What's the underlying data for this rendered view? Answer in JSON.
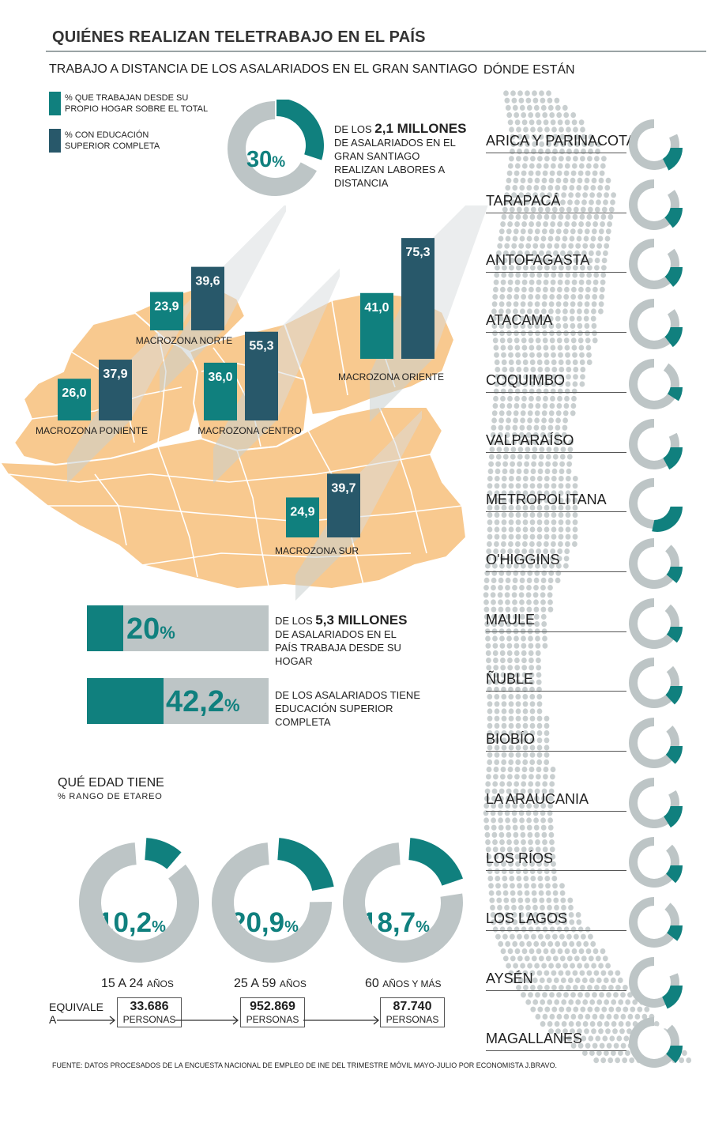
{
  "title": "QUIÉNES REALIZAN TELETRABAJO EN EL PAÍS",
  "subtitle": "TRABAJO A DISTANCIA DE LOS ASALARIADOS EN EL GRAN SANTIAGO",
  "legend": [
    {
      "label": "% QUE TRABAJAN DESDE SU PROPIO HOGAR SOBRE EL TOTAL",
      "color": "#10807e"
    },
    {
      "label": "% CON EDUCACIÓN SUPERIOR COMPLETA",
      "color": "#28586a"
    }
  ],
  "santiago_donut": {
    "value": 30,
    "value_text": "30",
    "text_before": "DE LOS ",
    "text_bold": "2,1 MILLONES",
    "text_after": " DE ASALARIADOS EN EL GRAN SANTIAGO REALIZAN LABORES A DISTANCIA"
  },
  "colors": {
    "teal": "#10807e",
    "navy": "#28586a",
    "gray": "#bdc5c6",
    "map": "#f8c98f",
    "map_line": "#ffffff"
  },
  "chart_data": {
    "type": "bar",
    "categories": [
      "MACROZONA PONIENTE",
      "MACROZONA NORTE",
      "MACROZONA CENTRO",
      "MACROZONA ORIENTE",
      "MACROZONA SUR"
    ],
    "series": [
      {
        "name": "% QUE TRABAJAN DESDE SU PROPIO HOGAR SOBRE EL TOTAL",
        "values": [
          26.0,
          23.9,
          36.0,
          41.0,
          24.9
        ],
        "labels": [
          "26,0",
          "23,9",
          "36,0",
          "41,0",
          "24,9"
        ]
      },
      {
        "name": "% CON EDUCACIÓN SUPERIOR COMPLETA",
        "values": [
          37.9,
          39.6,
          55.3,
          75.3,
          39.7
        ],
        "labels": [
          "37,9",
          "39,6",
          "55,3",
          "75,3",
          "39,7"
        ]
      }
    ]
  },
  "national": [
    {
      "value": 20,
      "value_text": "20",
      "text_before": "DE LOS ",
      "text_bold": "5,3 MILLONES",
      "text_after": " DE ASALARIADOS EN EL PAÍS TRABAJA DESDE SU HOGAR"
    },
    {
      "value": 42.2,
      "value_text": "42,2",
      "text_before": "DE LOS ASALARIADOS TIENE EDUCACIÓN SUPERIOR COMPLETA",
      "text_bold": "",
      "text_after": ""
    }
  ],
  "regions": {
    "title": "DÓNDE ESTÁN",
    "items": [
      {
        "name": "ARICA Y PARINACOTA",
        "value": 17.6,
        "text": "17,6"
      },
      {
        "name": "TARAPACÁ",
        "value": 14.5,
        "text": "14,5"
      },
      {
        "name": "ANTOFAGASTA",
        "value": 14.2,
        "text": "14,2"
      },
      {
        "name": "ATACAMA",
        "value": 14.4,
        "text": "14,4"
      },
      {
        "name": "COQUIMBO",
        "value": 9.1,
        "text": "9,1"
      },
      {
        "name": "VALPARAÍSO",
        "value": 17.1,
        "text": "17,1"
      },
      {
        "name": "METROPOLITANA",
        "value": 28.4,
        "text": "28,4"
      },
      {
        "name": "O'HIGGINS",
        "value": 11.2,
        "text": "11,2"
      },
      {
        "name": "MAULE",
        "value": 10.8,
        "text": "10,8"
      },
      {
        "name": "ÑUBLE",
        "value": 13.0,
        "text": "13,0"
      },
      {
        "name": "BIOBÍO",
        "value": 12.5,
        "text": "12,5"
      },
      {
        "name": "LA ARAUCANIA",
        "value": 16.1,
        "text": "16,1"
      },
      {
        "name": "LOS RÍOS",
        "value": 12.2,
        "text": "12,2"
      },
      {
        "name": "LOS LAGOS",
        "value": 10.5,
        "text": "10,5"
      },
      {
        "name": "AYSÉN",
        "value": 18.5,
        "text": "18,5"
      },
      {
        "name": "MAGALLANES",
        "value": 12.1,
        "text": "12,1"
      }
    ]
  },
  "age": {
    "title": "QUÉ EDAD TIENE",
    "subtitle": "% RANGO DE ETAREO",
    "equiv_label": "EQUIVALE A",
    "persons_label": "PERSONAS",
    "groups": [
      {
        "value": 10.2,
        "text": "10,2",
        "range_main": "15 A 24 ",
        "range_small": "AÑOS",
        "count": "33.686"
      },
      {
        "value": 20.9,
        "text": "20,9",
        "range_main": "25 A 59 ",
        "range_small": "AÑOS",
        "count": "952.869"
      },
      {
        "value": 18.7,
        "text": "18,7",
        "range_main": "60 ",
        "range_small": "AÑOS Y MÁS",
        "count": "87.740"
      }
    ]
  },
  "pct_sign": "%",
  "source": "FUENTE: DATOS PROCESADOS DE LA ENCUESTA NACIONAL DE EMPLEO DE INE DEL TRIMESTRE MÓVIL MAYO-JULIO POR ECONOMISTA J.BRAVO."
}
